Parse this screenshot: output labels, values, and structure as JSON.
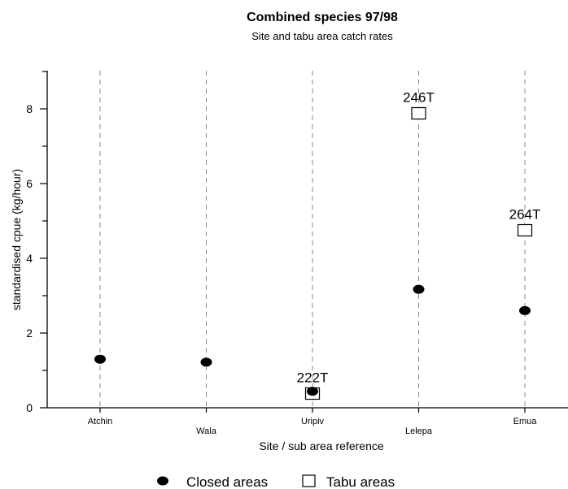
{
  "chart_data": {
    "type": "scatter",
    "title": "Combined species 97/98",
    "subtitle": "Site and tabu area catch rates",
    "xlabel": "Site / sub area reference",
    "ylabel": "standardised cpue (kg/hour)",
    "categories": [
      "Atchin",
      "Wala",
      "Uripiv",
      "Lelepa",
      "Emua"
    ],
    "ylim": [
      0,
      9
    ],
    "yticks": [
      0,
      2,
      4,
      6,
      8
    ],
    "grid": "vertical dashed lines at each category",
    "legend_placement": "bottom-center",
    "series": [
      {
        "name": "Closed areas",
        "marker": "filled-circle",
        "color": "#000000",
        "values": [
          1.3,
          1.22,
          0.44,
          3.17,
          2.6
        ]
      },
      {
        "name": "Tabu areas",
        "marker": "open-square",
        "color": "#000000",
        "values": [
          null,
          null,
          0.38,
          7.88,
          4.75
        ]
      }
    ],
    "annotations": [
      {
        "category": "Uripiv",
        "y": 0.38,
        "text": "222T"
      },
      {
        "category": "Lelepa",
        "y": 7.88,
        "text": "246T"
      },
      {
        "category": "Emua",
        "y": 4.75,
        "text": "264T"
      }
    ]
  }
}
